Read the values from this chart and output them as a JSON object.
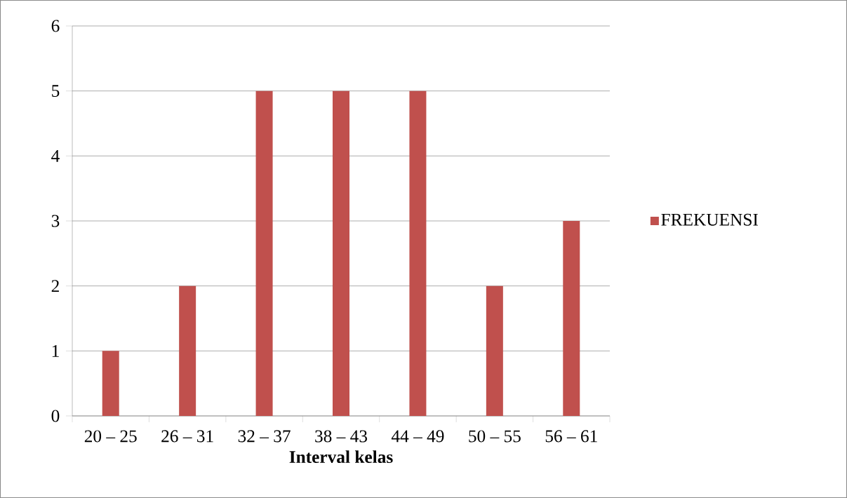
{
  "chart_data": {
    "type": "bar",
    "categories": [
      "20 – 25",
      "26 – 31",
      "32 – 37",
      "38 – 43",
      "44 – 49",
      "50 – 55",
      "56 – 61"
    ],
    "series": [
      {
        "name": "FREKUENSI",
        "color": "#c0504d",
        "values": [
          1,
          2,
          5,
          5,
          5,
          2,
          3
        ]
      }
    ],
    "xlabel": "Interval kelas",
    "ylim": [
      0,
      6
    ],
    "yticks": [
      0,
      1,
      2,
      3,
      4,
      5,
      6
    ],
    "grid": "y",
    "legend": "right"
  }
}
